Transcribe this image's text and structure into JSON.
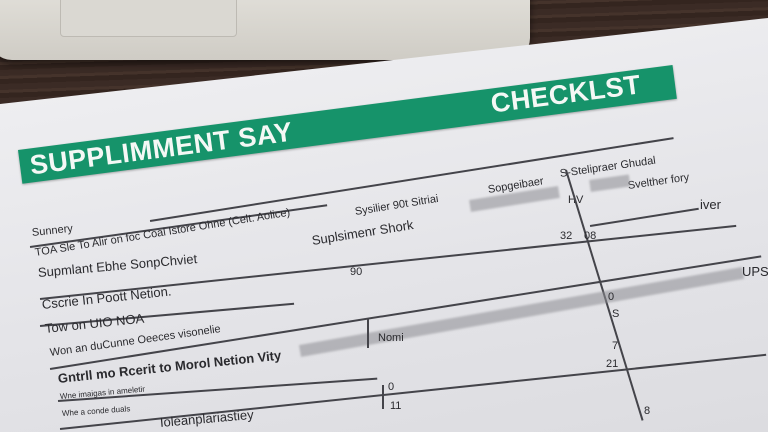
{
  "banner": {
    "left": "SUPPLIMMENT SAY",
    "right": "CHECKLST"
  },
  "header": {
    "col1": "Sysilier 90t Sitriai",
    "col2": "Sopgeibaer",
    "col3": "S-Stelipraer Ghudal",
    "col4": "Svelther fory",
    "sub1": "Suplsimenr Shork",
    "sub2": "HV",
    "right": "iver"
  },
  "rows": [
    {
      "label": "Sunnery"
    },
    {
      "label": "TOA Sle To Alir on foc Coal Istore Ohne (Celt. Aolice)"
    },
    {
      "label": "Supmlant Ebhe SonpChviet"
    },
    {
      "label": "Cscrie In Poott Netion."
    },
    {
      "label": "Tow on UIO NOA"
    },
    {
      "label": "Won an duCunne Oeeces visonelie"
    },
    {
      "label": "Gntrll mo Rcerit to Morol Netion Vity"
    },
    {
      "label": "Wne imaigas in ameletir"
    },
    {
      "label": "Whe a conde duals"
    },
    {
      "label": "Ioleanplariastiey"
    }
  ],
  "cells": {
    "a": "32",
    "b": "08",
    "c": "90",
    "d": "0",
    "e": "S",
    "f": "Nomi",
    "g": "7",
    "h": "21",
    "i": "0",
    "j": "11",
    "k": "8",
    "l": "UPS"
  },
  "colors": {
    "banner": "#16936a",
    "paper": "#ececf0",
    "wood": "#3b2b25"
  }
}
